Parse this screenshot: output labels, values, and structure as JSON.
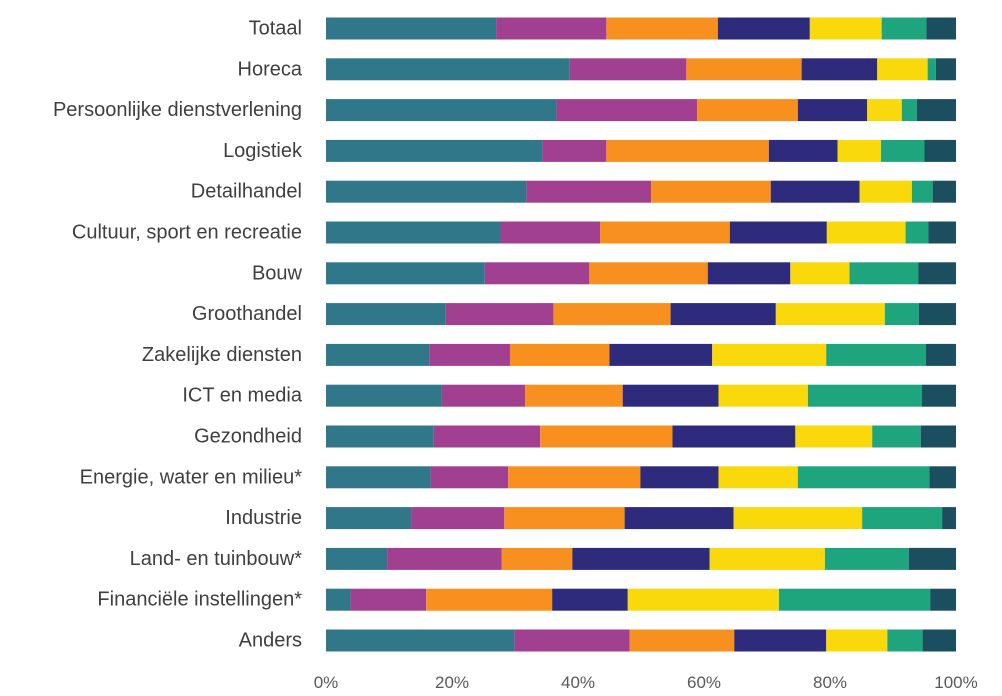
{
  "chart_data": {
    "type": "bar",
    "orientation": "horizontal",
    "stacked": "percent",
    "title": "",
    "xlabel": "",
    "ylabel": "",
    "xlim": [
      0,
      100
    ],
    "grid": false,
    "x_ticks": [
      "0%",
      "20%",
      "40%",
      "60%",
      "80%",
      "100%"
    ],
    "categories": [
      "Totaal",
      "Horeca",
      "Persoonlijke dienstverlening",
      "Logistiek",
      "Detailhandel",
      "Cultuur, sport en recreatie",
      "Bouw",
      "Groothandel",
      "Zakelijke diensten",
      "ICT en media",
      "Gezondheid",
      "Energie, water en milieu*",
      "Industrie",
      "Land- en tuinbouw*",
      "Financiële instellingen*",
      "Anders"
    ],
    "series": [
      {
        "color": "#31778a",
        "values": [
          27.0,
          38.7,
          36.6,
          34.3,
          31.8,
          27.7,
          25.2,
          19.0,
          16.4,
          18.4,
          17.1,
          16.6,
          13.5,
          9.7,
          3.9,
          29.9
        ]
      },
      {
        "color": "#a13f91",
        "values": [
          17.5,
          18.5,
          22.3,
          10.2,
          19.8,
          15.8,
          16.6,
          17.1,
          12.8,
          13.2,
          16.9,
          12.3,
          14.8,
          18.2,
          12.0,
          18.3
        ]
      },
      {
        "color": "#f7901e",
        "values": [
          17.7,
          18.3,
          16.0,
          25.8,
          19.0,
          20.6,
          18.8,
          18.6,
          15.8,
          15.5,
          21.0,
          21.0,
          19.1,
          11.2,
          20.0,
          16.6
        ]
      },
      {
        "color": "#2e2b7d",
        "values": [
          14.6,
          12.0,
          11.0,
          10.9,
          14.1,
          15.4,
          13.1,
          16.7,
          16.3,
          15.2,
          19.5,
          12.4,
          17.3,
          21.8,
          12.0,
          14.6
        ]
      },
      {
        "color": "#f9d80c",
        "values": [
          11.4,
          8.0,
          5.5,
          6.9,
          8.3,
          12.5,
          9.4,
          17.3,
          18.1,
          14.2,
          12.2,
          12.6,
          20.4,
          18.3,
          24.0,
          9.7
        ]
      },
      {
        "color": "#1ea57e",
        "values": [
          7.1,
          1.3,
          2.4,
          6.9,
          3.3,
          3.6,
          10.9,
          5.4,
          15.8,
          18.1,
          7.7,
          20.9,
          12.7,
          13.3,
          24.0,
          5.6
        ]
      },
      {
        "color": "#1b4e5e",
        "values": [
          4.7,
          3.2,
          6.2,
          5.0,
          3.7,
          4.4,
          6.0,
          5.9,
          4.8,
          5.4,
          5.6,
          4.2,
          2.2,
          7.5,
          4.1,
          5.3
        ]
      }
    ]
  }
}
